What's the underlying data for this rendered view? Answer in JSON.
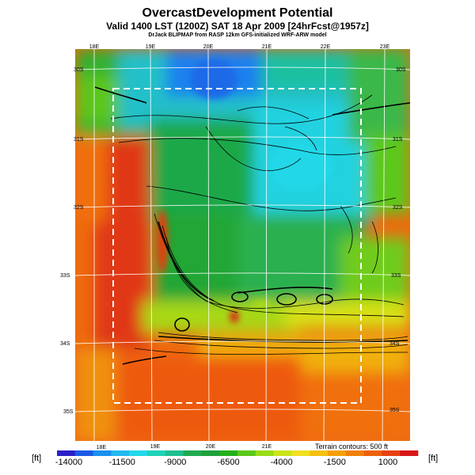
{
  "header": {
    "title": "OvercastDevelopment Potential",
    "subtitle": "Valid 1400 LST (1200Z) SAT 18 Apr 2009 [24hrFcst@1957z]",
    "credit": "DrJack BLIPMAP from RASP 12km GFS-initialized WRF-ARW model"
  },
  "map": {
    "top_lon_labels": [
      "18E",
      "19E",
      "20E",
      "21E",
      "22E",
      "23E"
    ],
    "bottom_lon_labels": [
      "18E",
      "19E",
      "20E",
      "21E"
    ],
    "left_lat_labels": [
      "30S",
      "31S",
      "32S",
      "33S",
      "34S",
      "35S"
    ],
    "right_lat_labels": [
      "30S",
      "31S",
      "32S",
      "33S",
      "34S",
      "35S"
    ],
    "terrain_note": "Terrain contours: 500 ft"
  },
  "colorbar": {
    "unit_left": "[ft]",
    "unit_right": "[ft]",
    "tick_labels": [
      "-14000",
      "-11500",
      "-9000",
      "-6500",
      "-4000",
      "-1500",
      "1000"
    ],
    "colors": [
      "#2b1fc8",
      "#1a5ae6",
      "#1990ef",
      "#22b8f0",
      "#23d8e8",
      "#1fd2b8",
      "#20c090",
      "#1faa50",
      "#1fa03a",
      "#26b01c",
      "#5cc81a",
      "#98dc18",
      "#cce41a",
      "#f0e020",
      "#f5c010",
      "#f5a008",
      "#f08008",
      "#ee6008",
      "#e84010",
      "#d81818"
    ]
  }
}
